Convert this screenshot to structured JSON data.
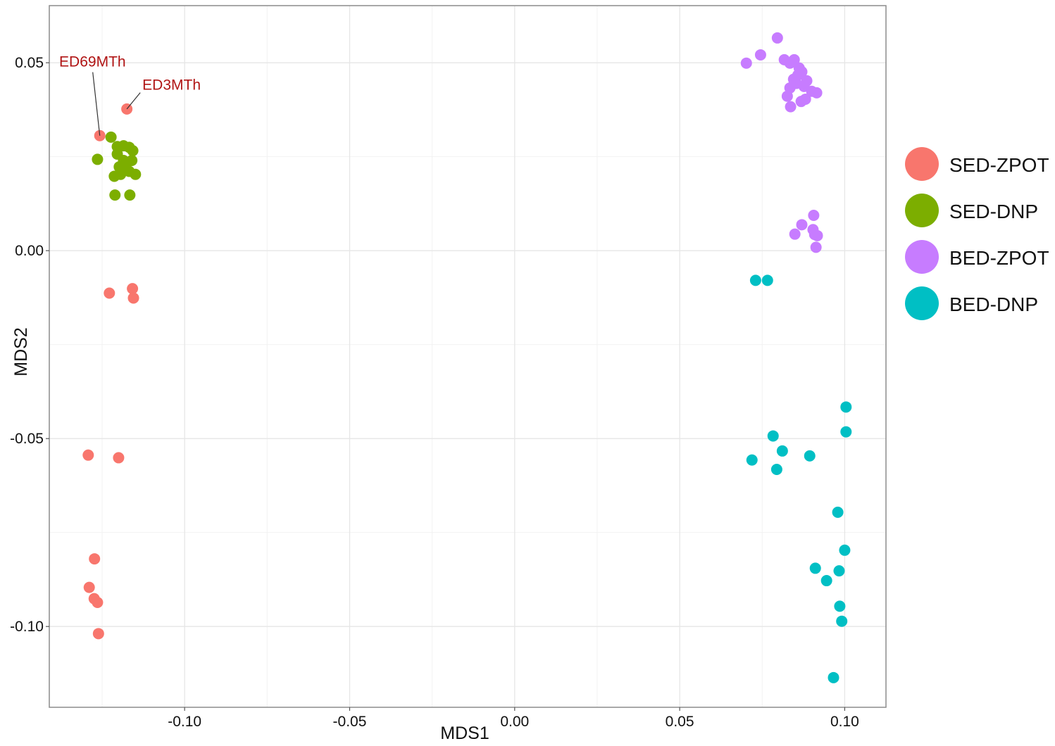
{
  "chart_data": {
    "type": "scatter",
    "title": "",
    "xlabel": "MDS1",
    "ylabel": "MDS2",
    "xlim": [
      -0.141,
      0.1125
    ],
    "ylim": [
      -0.1215,
      0.0652
    ],
    "x_ticks": [
      -0.1,
      -0.05,
      0.0,
      0.05,
      0.1
    ],
    "x_tick_labels": [
      "-0.10",
      "-0.05",
      "0.00",
      "0.05",
      "0.10"
    ],
    "y_ticks": [
      -0.1,
      -0.05,
      0.0,
      0.05
    ],
    "y_tick_labels": [
      "-0.10",
      "-0.05",
      "0.00",
      "0.05"
    ],
    "grid": true,
    "legend_position": "right",
    "series": [
      {
        "name": "SED-ZPOT",
        "color": "#F8766D",
        "points": [
          [
            -0.1175,
            0.0377
          ],
          [
            -0.1257,
            0.0306
          ],
          [
            -0.1228,
            -0.0113
          ],
          [
            -0.1158,
            -0.0101
          ],
          [
            -0.1155,
            -0.0126
          ],
          [
            -0.1292,
            -0.0544
          ],
          [
            -0.12,
            -0.0551
          ],
          [
            -0.1273,
            -0.082
          ],
          [
            -0.1289,
            -0.0896
          ],
          [
            -0.1274,
            -0.0926
          ],
          [
            -0.1264,
            -0.0936
          ],
          [
            -0.1261,
            -0.1019
          ]
        ]
      },
      {
        "name": "SED-DNP",
        "color": "#7CAE00",
        "points": [
          [
            -0.1223,
            0.0302
          ],
          [
            -0.1264,
            0.0243
          ],
          [
            -0.1204,
            0.0277
          ],
          [
            -0.1185,
            0.0279
          ],
          [
            -0.1168,
            0.0275
          ],
          [
            -0.1157,
            0.0266
          ],
          [
            -0.1204,
            0.0257
          ],
          [
            -0.1185,
            0.024
          ],
          [
            -0.116,
            0.024
          ],
          [
            -0.1198,
            0.0223
          ],
          [
            -0.1177,
            0.0219
          ],
          [
            -0.1168,
            0.0211
          ],
          [
            -0.1213,
            0.0198
          ],
          [
            -0.1194,
            0.0203
          ],
          [
            -0.1149,
            0.0203
          ],
          [
            -0.1211,
            0.0148
          ],
          [
            -0.1166,
            0.0148
          ]
        ]
      },
      {
        "name": "BED-ZPOT",
        "color": "#C77CFF",
        "points": [
          [
            0.0796,
            0.0566
          ],
          [
            0.0745,
            0.0521
          ],
          [
            0.0702,
            0.0499
          ],
          [
            0.0817,
            0.0508
          ],
          [
            0.0847,
            0.0508
          ],
          [
            0.0834,
            0.0499
          ],
          [
            0.0862,
            0.0486
          ],
          [
            0.087,
            0.0476
          ],
          [
            0.0858,
            0.0467
          ],
          [
            0.0845,
            0.0456
          ],
          [
            0.0853,
            0.0445
          ],
          [
            0.0885,
            0.0452
          ],
          [
            0.0877,
            0.0437
          ],
          [
            0.0834,
            0.0433
          ],
          [
            0.09,
            0.0424
          ],
          [
            0.0915,
            0.042
          ],
          [
            0.0826,
            0.0411
          ],
          [
            0.0881,
            0.0403
          ],
          [
            0.0868,
            0.0397
          ],
          [
            0.0836,
            0.0383
          ],
          [
            0.0906,
            0.0094
          ],
          [
            0.087,
            0.0069
          ],
          [
            0.0904,
            0.0056
          ],
          [
            0.0849,
            0.0044
          ],
          [
            0.0909,
            0.0043
          ],
          [
            0.0917,
            0.004
          ],
          [
            0.0913,
            0.0009
          ]
        ]
      },
      {
        "name": "BED-DNP",
        "color": "#00BFC4",
        "points": [
          [
            0.073,
            -0.0079
          ],
          [
            0.0766,
            -0.0079
          ],
          [
            0.1004,
            -0.0416
          ],
          [
            0.1004,
            -0.0482
          ],
          [
            0.0783,
            -0.0493
          ],
          [
            0.0811,
            -0.0533
          ],
          [
            0.0894,
            -0.0546
          ],
          [
            0.0719,
            -0.0557
          ],
          [
            0.0794,
            -0.0582
          ],
          [
            0.0979,
            -0.0696
          ],
          [
            0.1,
            -0.0797
          ],
          [
            0.0911,
            -0.0845
          ],
          [
            0.0983,
            -0.0852
          ],
          [
            0.0945,
            -0.0878
          ],
          [
            0.0985,
            -0.0946
          ],
          [
            0.0991,
            -0.0986
          ],
          [
            0.0966,
            -0.1136
          ]
        ]
      }
    ],
    "annotations": [
      {
        "text": "ED69MTh",
        "point": [
          -0.1257,
          0.0306
        ],
        "label_at": [
          -0.138,
          0.049
        ]
      },
      {
        "text": "ED3MTh",
        "point": [
          -0.1175,
          0.0377
        ],
        "label_at": [
          -0.1128,
          0.0428
        ]
      }
    ]
  },
  "legend": {
    "items": [
      {
        "label": "SED-ZPOT",
        "color": "#F8766D"
      },
      {
        "label": "SED-DNP",
        "color": "#7CAE00"
      },
      {
        "label": "BED-ZPOT",
        "color": "#C77CFF"
      },
      {
        "label": "BED-DNP",
        "color": "#00BFC4"
      }
    ]
  },
  "style": {
    "panel_border": "#8c8c8c",
    "grid_major": "#e6e6e6",
    "grid_minor": "#f2f2f2",
    "annotation_color": "#b01414"
  }
}
